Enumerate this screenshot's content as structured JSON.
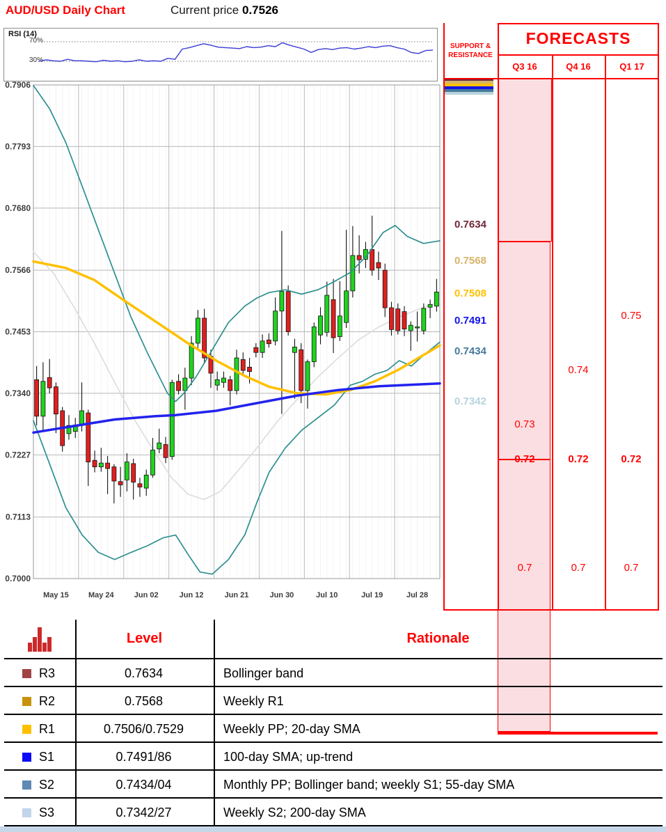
{
  "header": {
    "title": "AUD/USD Daily Chart",
    "current_price_label": "Current price",
    "current_price": "0.7526"
  },
  "rsi": {
    "label": "RSI (14)",
    "upper_tick": "70%",
    "lower_tick": "30%",
    "upper": 70,
    "lower": 30,
    "line_color": "#3a3ad6",
    "values": [
      30,
      33,
      31,
      30,
      34,
      31,
      31,
      30,
      29,
      32,
      30,
      31,
      29,
      30,
      33,
      30,
      31,
      30,
      36,
      34,
      55,
      58,
      62,
      66,
      63,
      59,
      58,
      57,
      56,
      60,
      58,
      59,
      62,
      60,
      68,
      63,
      59,
      55,
      48,
      54,
      56,
      54,
      57,
      58,
      55,
      57,
      60,
      58,
      61,
      62,
      58,
      55,
      48,
      46,
      52,
      53
    ]
  },
  "chart_data": {
    "type": "candlestick",
    "instrument": "AUD/USD",
    "timeframe": "Daily",
    "y_ticks": [
      "0.7906",
      "0.7793",
      "0.7680",
      "0.7566",
      "0.7453",
      "0.7340",
      "0.7227",
      "0.7113",
      "0.7000"
    ],
    "y_tick_prices": [
      0.7906,
      0.7793,
      0.768,
      0.7566,
      0.7453,
      0.734,
      0.7227,
      0.7113,
      0.7
    ],
    "x_ticks": [
      "May 15",
      "May 24",
      "Jun 02",
      "Jun 12",
      "Jun 21",
      "Jun 30",
      "Jul 10",
      "Jul 19",
      "Jul 28"
    ],
    "ylim": [
      0.7,
      0.7906
    ],
    "grid": true,
    "up_color": "#1ed41e",
    "down_color": "#e01f1f",
    "candles": [
      [
        0.7365,
        0.739,
        0.7281,
        0.7298
      ],
      [
        0.7298,
        0.7397,
        0.7272,
        0.7362
      ],
      [
        0.7369,
        0.7403,
        0.734,
        0.735
      ],
      [
        0.7352,
        0.736,
        0.7267,
        0.7302
      ],
      [
        0.7308,
        0.7315,
        0.7233,
        0.7244
      ],
      [
        0.7266,
        0.73,
        0.7255,
        0.7281
      ],
      [
        0.727,
        0.7295,
        0.7258,
        0.7282
      ],
      [
        0.7281,
        0.736,
        0.727,
        0.7308
      ],
      [
        0.7304,
        0.731,
        0.717,
        0.7214
      ],
      [
        0.7217,
        0.7235,
        0.7195,
        0.7205
      ],
      [
        0.7205,
        0.724,
        0.7196,
        0.7212
      ],
      [
        0.7212,
        0.7225,
        0.7155,
        0.7202
      ],
      [
        0.7205,
        0.721,
        0.7138,
        0.7179
      ],
      [
        0.7178,
        0.7205,
        0.715,
        0.7172
      ],
      [
        0.7181,
        0.723,
        0.716,
        0.7214
      ],
      [
        0.7211,
        0.722,
        0.7145,
        0.7177
      ],
      [
        0.7174,
        0.7185,
        0.715,
        0.7168
      ],
      [
        0.7166,
        0.72,
        0.7152,
        0.719
      ],
      [
        0.719,
        0.7258,
        0.7185,
        0.7236
      ],
      [
        0.7238,
        0.7275,
        0.723,
        0.7249
      ],
      [
        0.7246,
        0.726,
        0.7212,
        0.7222
      ],
      [
        0.7224,
        0.7365,
        0.7218,
        0.736
      ],
      [
        0.7362,
        0.7375,
        0.7338,
        0.7345
      ],
      [
        0.7345,
        0.7387,
        0.731,
        0.7368
      ],
      [
        0.7368,
        0.7445,
        0.7355,
        0.7432
      ],
      [
        0.7432,
        0.7493,
        0.742,
        0.7478
      ],
      [
        0.7478,
        0.7495,
        0.7395,
        0.7405
      ],
      [
        0.7408,
        0.742,
        0.735,
        0.7377
      ],
      [
        0.7355,
        0.738,
        0.7345,
        0.7365
      ],
      [
        0.736,
        0.738,
        0.735,
        0.7368
      ],
      [
        0.7365,
        0.7372,
        0.7318,
        0.7345
      ],
      [
        0.7345,
        0.742,
        0.7338,
        0.7405
      ],
      [
        0.7402,
        0.7415,
        0.7372,
        0.7382
      ],
      [
        0.7388,
        0.7405,
        0.7358,
        0.738
      ],
      [
        0.7424,
        0.7432,
        0.7406,
        0.7415
      ],
      [
        0.7415,
        0.7448,
        0.7405,
        0.7436
      ],
      [
        0.7438,
        0.745,
        0.7424,
        0.7431
      ],
      [
        0.7436,
        0.7516,
        0.7428,
        0.7491
      ],
      [
        0.7491,
        0.7638,
        0.7302,
        0.7527
      ],
      [
        0.7527,
        0.7538,
        0.7446,
        0.7453
      ],
      [
        0.7415,
        0.744,
        0.733,
        0.7425
      ],
      [
        0.742,
        0.7432,
        0.7322,
        0.7345
      ],
      [
        0.7345,
        0.7402,
        0.7312,
        0.7398
      ],
      [
        0.7398,
        0.747,
        0.7388,
        0.7462
      ],
      [
        0.7447,
        0.7498,
        0.743,
        0.7482
      ],
      [
        0.7452,
        0.7545,
        0.7444,
        0.752
      ],
      [
        0.7512,
        0.755,
        0.7414,
        0.7442
      ],
      [
        0.7444,
        0.7546,
        0.7436,
        0.7482
      ],
      [
        0.747,
        0.764,
        0.746,
        0.7528
      ],
      [
        0.7528,
        0.7647,
        0.7516,
        0.7593
      ],
      [
        0.7593,
        0.763,
        0.756,
        0.7585
      ],
      [
        0.7586,
        0.7618,
        0.757,
        0.7604
      ],
      [
        0.7604,
        0.7666,
        0.7556,
        0.7566
      ],
      [
        0.758,
        0.76,
        0.7548,
        0.757
      ],
      [
        0.7566,
        0.7578,
        0.748,
        0.7497
      ],
      [
        0.7497,
        0.7508,
        0.7446,
        0.7457
      ],
      [
        0.7495,
        0.7505,
        0.7448,
        0.7455
      ],
      [
        0.749,
        0.75,
        0.7445,
        0.7458
      ],
      [
        0.7455,
        0.7472,
        0.7418,
        0.7465
      ],
      [
        0.746,
        0.749,
        0.7435,
        0.7462
      ],
      [
        0.7455,
        0.7505,
        0.7448,
        0.7496
      ],
      [
        0.7498,
        0.7512,
        0.7478,
        0.7503
      ],
      [
        0.75,
        0.755,
        0.749,
        0.7526
      ]
    ],
    "overlays": [
      {
        "name": "sma-gray",
        "color": "#dcdcdc",
        "width": 1.6,
        "points": [
          [
            0,
            0.76
          ],
          [
            0.05,
            0.756
          ],
          [
            0.1,
            0.7498
          ],
          [
            0.15,
            0.7432
          ],
          [
            0.2,
            0.736
          ],
          [
            0.25,
            0.729
          ],
          [
            0.3,
            0.723
          ],
          [
            0.34,
            0.7185
          ],
          [
            0.38,
            0.7155
          ],
          [
            0.42,
            0.7145
          ],
          [
            0.46,
            0.716
          ],
          [
            0.5,
            0.7195
          ],
          [
            0.55,
            0.724
          ],
          [
            0.6,
            0.7288
          ],
          [
            0.65,
            0.733
          ],
          [
            0.7,
            0.737
          ],
          [
            0.75,
            0.7405
          ],
          [
            0.8,
            0.7438
          ],
          [
            0.85,
            0.7462
          ],
          [
            0.9,
            0.748
          ],
          [
            0.95,
            0.7495
          ],
          [
            1,
            0.7508
          ]
        ]
      },
      {
        "name": "bollinger-upper",
        "color": "#2e8f8f",
        "width": 1.7,
        "points": [
          [
            0,
            0.7905
          ],
          [
            0.04,
            0.7862
          ],
          [
            0.08,
            0.78
          ],
          [
            0.12,
            0.772
          ],
          [
            0.16,
            0.764
          ],
          [
            0.2,
            0.756
          ],
          [
            0.24,
            0.748
          ],
          [
            0.28,
            0.7415
          ],
          [
            0.31,
            0.737
          ],
          [
            0.33,
            0.734
          ],
          [
            0.35,
            0.7325
          ],
          [
            0.37,
            0.734
          ],
          [
            0.4,
            0.737
          ],
          [
            0.44,
            0.742
          ],
          [
            0.48,
            0.747
          ],
          [
            0.52,
            0.75
          ],
          [
            0.55,
            0.7515
          ],
          [
            0.58,
            0.7525
          ],
          [
            0.62,
            0.753
          ],
          [
            0.66,
            0.7522
          ],
          [
            0.7,
            0.753
          ],
          [
            0.74,
            0.7545
          ],
          [
            0.78,
            0.7562
          ],
          [
            0.82,
            0.7592
          ],
          [
            0.86,
            0.7635
          ],
          [
            0.89,
            0.7648
          ],
          [
            0.92,
            0.7628
          ],
          [
            0.96,
            0.7615
          ],
          [
            1,
            0.762
          ]
        ]
      },
      {
        "name": "bollinger-lower",
        "color": "#2e8f8f",
        "width": 1.7,
        "points": [
          [
            0,
            0.729
          ],
          [
            0.04,
            0.721
          ],
          [
            0.08,
            0.713
          ],
          [
            0.12,
            0.708
          ],
          [
            0.16,
            0.7048
          ],
          [
            0.2,
            0.7035
          ],
          [
            0.24,
            0.7048
          ],
          [
            0.28,
            0.706
          ],
          [
            0.32,
            0.7075
          ],
          [
            0.35,
            0.708
          ],
          [
            0.38,
            0.7045
          ],
          [
            0.41,
            0.7012
          ],
          [
            0.44,
            0.7008
          ],
          [
            0.48,
            0.7035
          ],
          [
            0.52,
            0.708
          ],
          [
            0.55,
            0.714
          ],
          [
            0.58,
            0.7195
          ],
          [
            0.62,
            0.724
          ],
          [
            0.66,
            0.7272
          ],
          [
            0.7,
            0.7295
          ],
          [
            0.74,
            0.7318
          ],
          [
            0.78,
            0.7355
          ],
          [
            0.81,
            0.7362
          ],
          [
            0.84,
            0.7375
          ],
          [
            0.87,
            0.7382
          ],
          [
            0.9,
            0.74
          ],
          [
            0.93,
            0.739
          ],
          [
            0.96,
            0.741
          ],
          [
            1,
            0.7434
          ]
        ]
      },
      {
        "name": "sma-20",
        "color": "#ffc000",
        "width": 3.5,
        "points": [
          [
            0,
            0.7582
          ],
          [
            0.08,
            0.757
          ],
          [
            0.15,
            0.7548
          ],
          [
            0.22,
            0.7512
          ],
          [
            0.3,
            0.7472
          ],
          [
            0.38,
            0.7432
          ],
          [
            0.45,
            0.74
          ],
          [
            0.52,
            0.7372
          ],
          [
            0.58,
            0.7352
          ],
          [
            0.65,
            0.734
          ],
          [
            0.72,
            0.7338
          ],
          [
            0.78,
            0.7346
          ],
          [
            0.84,
            0.7362
          ],
          [
            0.9,
            0.7384
          ],
          [
            0.95,
            0.7406
          ],
          [
            1,
            0.7428
          ]
        ]
      },
      {
        "name": "sma-100",
        "color": "#2222ee",
        "width": 3.5,
        "points": [
          [
            0,
            0.7268
          ],
          [
            0.1,
            0.728
          ],
          [
            0.2,
            0.7292
          ],
          [
            0.3,
            0.7298
          ],
          [
            0.35,
            0.73
          ],
          [
            0.45,
            0.7308
          ],
          [
            0.55,
            0.7322
          ],
          [
            0.65,
            0.7336
          ],
          [
            0.75,
            0.7346
          ],
          [
            0.85,
            0.7353
          ],
          [
            1,
            0.7358
          ]
        ]
      }
    ]
  },
  "support_resistance": {
    "header": "SUPPORT & RESISTANCE",
    "levels": [
      {
        "value": "0.7634",
        "price": 0.7634,
        "color": "#6e2639",
        "label_side": "above"
      },
      {
        "value": "0.7568",
        "price": 0.7568,
        "color": "#d7b469",
        "label_side": "above"
      },
      {
        "value": "0.7508",
        "price": 0.7508,
        "color": "#ffc000",
        "label_side": "above"
      },
      {
        "value": "0.7491",
        "price": 0.7491,
        "color": "#1212e8",
        "label_side": "below"
      },
      {
        "value": "0.7434",
        "price": 0.7434,
        "color": "#44799c",
        "label_side": "below"
      },
      {
        "value": "0.7342",
        "price": 0.7342,
        "color": "#b7d3dc",
        "label_side": "below"
      }
    ]
  },
  "forecasts": {
    "title": "FORECASTS",
    "fill_color": "#fbdee1",
    "border_color": "#ff0000",
    "consensus_price": 0.72,
    "floor_price": 0.7,
    "columns": [
      {
        "quarter": "Q3 16",
        "high_price": 0.73,
        "high_label": "0.73",
        "low_label": "0.7",
        "consensus_label": "0.72"
      },
      {
        "quarter": "Q4 16",
        "high_price": 0.74,
        "high_label": "0.74",
        "low_label": "0.7",
        "consensus_label": "0.72"
      },
      {
        "quarter": "Q1 17",
        "high_price": 0.75,
        "high_label": "0.75",
        "low_label": "0.7",
        "consensus_label": "0.72"
      }
    ]
  },
  "levels_table": {
    "level_header": "Level",
    "rationale_header": "Rationale",
    "rows": [
      {
        "name": "R3",
        "swatch": "#9e4444",
        "level": "0.7634",
        "rationale": "Bollinger band"
      },
      {
        "name": "R2",
        "swatch": "#c8920a",
        "level": "0.7568",
        "rationale": "Weekly R1"
      },
      {
        "name": "R1",
        "swatch": "#ffc000",
        "level": "0.7506/0.7529",
        "rationale": "Weekly PP; 20-day SMA"
      },
      {
        "name": "S1",
        "swatch": "#0b0bf5",
        "level": "0.7491/86",
        "rationale": "100-day SMA; up-trend"
      },
      {
        "name": "S2",
        "swatch": "#5e8ab4",
        "level": "0.7434/04",
        "rationale": "Monthly PP; Bollinger band; weekly S1; 55-day SMA"
      },
      {
        "name": "S3",
        "swatch": "#c2d4ea",
        "level": "0.7342/27",
        "rationale": "Weekly S2; 200-day SMA"
      }
    ],
    "icon_bar_heights": [
      13,
      21,
      35,
      13,
      21
    ],
    "icon_color": "#cc2a2a"
  }
}
